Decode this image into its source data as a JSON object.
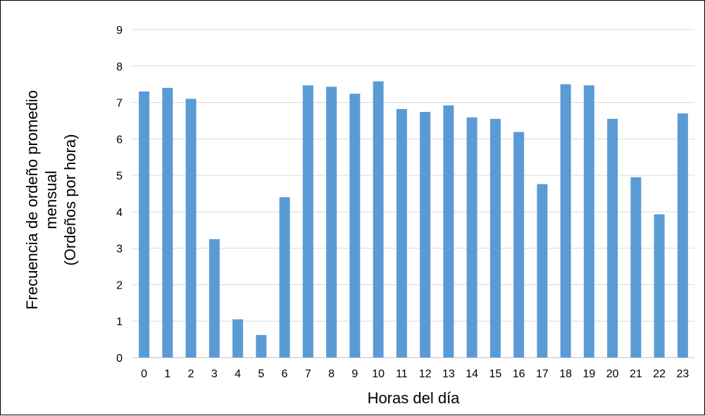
{
  "chart_data": {
    "type": "bar",
    "title": "",
    "xlabel": "Horas del día",
    "ylabel_lines": [
      "Frecuencia de ordeño promedio",
      "mensual",
      "(Ordeños por hora)"
    ],
    "categories": [
      "0",
      "1",
      "2",
      "3",
      "4",
      "5",
      "6",
      "7",
      "8",
      "9",
      "10",
      "11",
      "12",
      "13",
      "14",
      "15",
      "16",
      "17",
      "18",
      "19",
      "20",
      "21",
      "22",
      "23"
    ],
    "values": [
      7.3,
      7.4,
      7.1,
      3.25,
      1.05,
      0.62,
      4.4,
      7.47,
      7.43,
      7.24,
      7.58,
      6.82,
      6.74,
      6.92,
      6.59,
      6.55,
      6.19,
      4.76,
      7.5,
      7.47,
      6.55,
      4.95,
      3.93,
      6.7
    ],
    "ylim": [
      0,
      9
    ],
    "yticks": [
      "0",
      "1",
      "2",
      "3",
      "4",
      "5",
      "6",
      "7",
      "8",
      "9"
    ],
    "grid": true,
    "bar_color": "#5b9bd5",
    "grid_color": "#d9d9d9"
  }
}
